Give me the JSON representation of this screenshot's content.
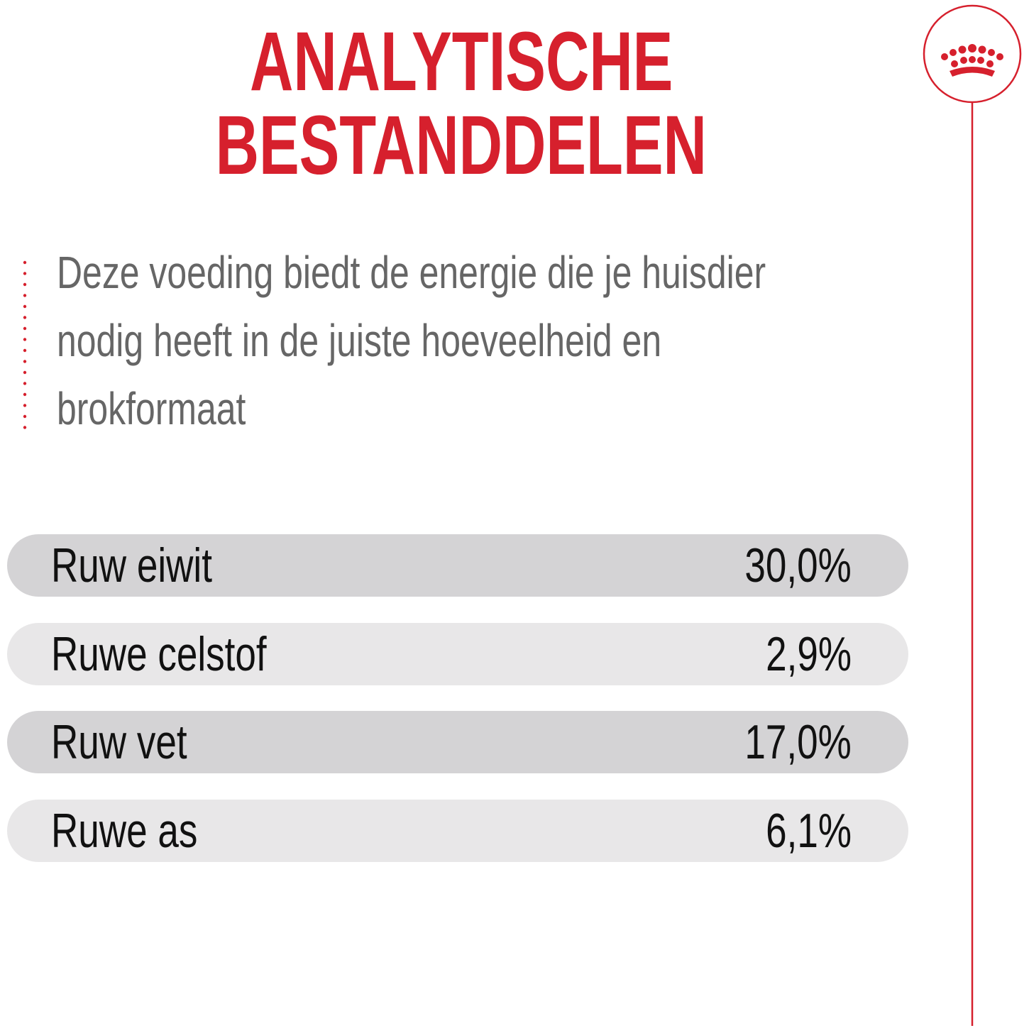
{
  "header": {
    "title": [
      "ANALYTISCHE",
      "BESTANDDELEN"
    ]
  },
  "description": {
    "lines": [
      "Deze voeding biedt de energie die je huisdier",
      "nodig heeft in de juiste hoeveelheid en",
      "brokformaat"
    ]
  },
  "table": {
    "rows": [
      [
        "Ruw eiwit",
        "30,0%"
      ],
      [
        "Ruwe celstof",
        "2,9%"
      ],
      [
        "Ruw vet",
        "17,0%"
      ],
      [
        "Ruwe as",
        "6,1%"
      ]
    ]
  }
}
